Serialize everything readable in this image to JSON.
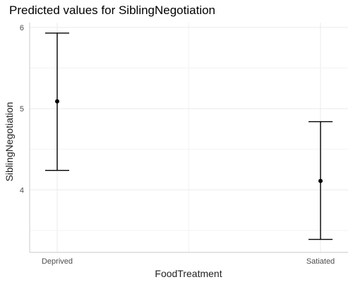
{
  "chart_data": {
    "type": "errorbar",
    "title": "Predicted values for SiblingNegotiation",
    "xlabel": "FoodTreatment",
    "ylabel": "SiblingNegotiation",
    "categories": [
      "Deprived",
      "Satiated"
    ],
    "values": [
      5.09,
      4.11
    ],
    "lower": [
      4.24,
      3.39
    ],
    "upper": [
      5.93,
      4.84
    ],
    "ylim": [
      3.23,
      6.06
    ],
    "yticks": [
      4,
      5,
      6
    ],
    "grid": true,
    "legend": "none",
    "colors": {
      "mark": "#000000",
      "grid_major": "#ebebeb",
      "grid_minor": "#f3f3f3",
      "axis_line": "#c8c8c8"
    }
  }
}
